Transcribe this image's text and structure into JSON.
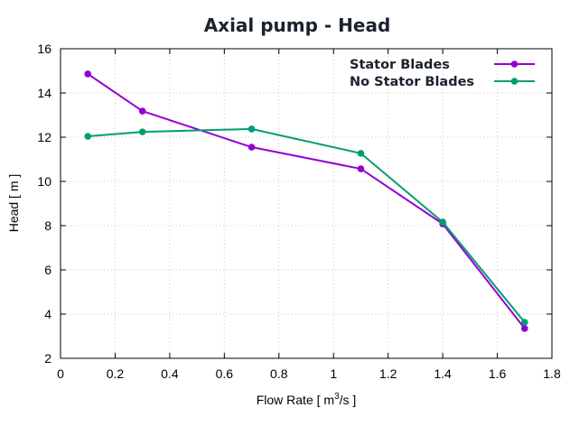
{
  "chart_data": {
    "type": "line",
    "title": "Axial pump - Head",
    "xlabel_prefix": "Flow Rate [ m",
    "xlabel_sup": "3",
    "xlabel_suffix": "/s ]",
    "ylabel": "Head [ m ]",
    "xlim": [
      0,
      1.8
    ],
    "ylim": [
      2,
      16
    ],
    "xticks": [
      "0",
      "0.2",
      "0.4",
      "0.6",
      "0.8",
      "1",
      "1.2",
      "1.4",
      "1.6",
      "1.8"
    ],
    "yticks": [
      "2",
      "4",
      "6",
      "8",
      "10",
      "12",
      "14",
      "16"
    ],
    "grid": true,
    "legend_position": "top-right",
    "series": [
      {
        "name": "Stator Blades",
        "color": "#9400d3",
        "x": [
          0.1,
          0.3,
          0.7,
          1.1,
          1.4,
          1.7
        ],
        "y": [
          14.86,
          13.18,
          11.55,
          10.57,
          8.08,
          3.35
        ]
      },
      {
        "name": "No Stator Blades",
        "color": "#009e73",
        "x": [
          0.1,
          0.3,
          0.7,
          1.1,
          1.4,
          1.7
        ],
        "y": [
          12.04,
          12.24,
          12.37,
          11.27,
          8.16,
          3.63
        ]
      }
    ]
  }
}
